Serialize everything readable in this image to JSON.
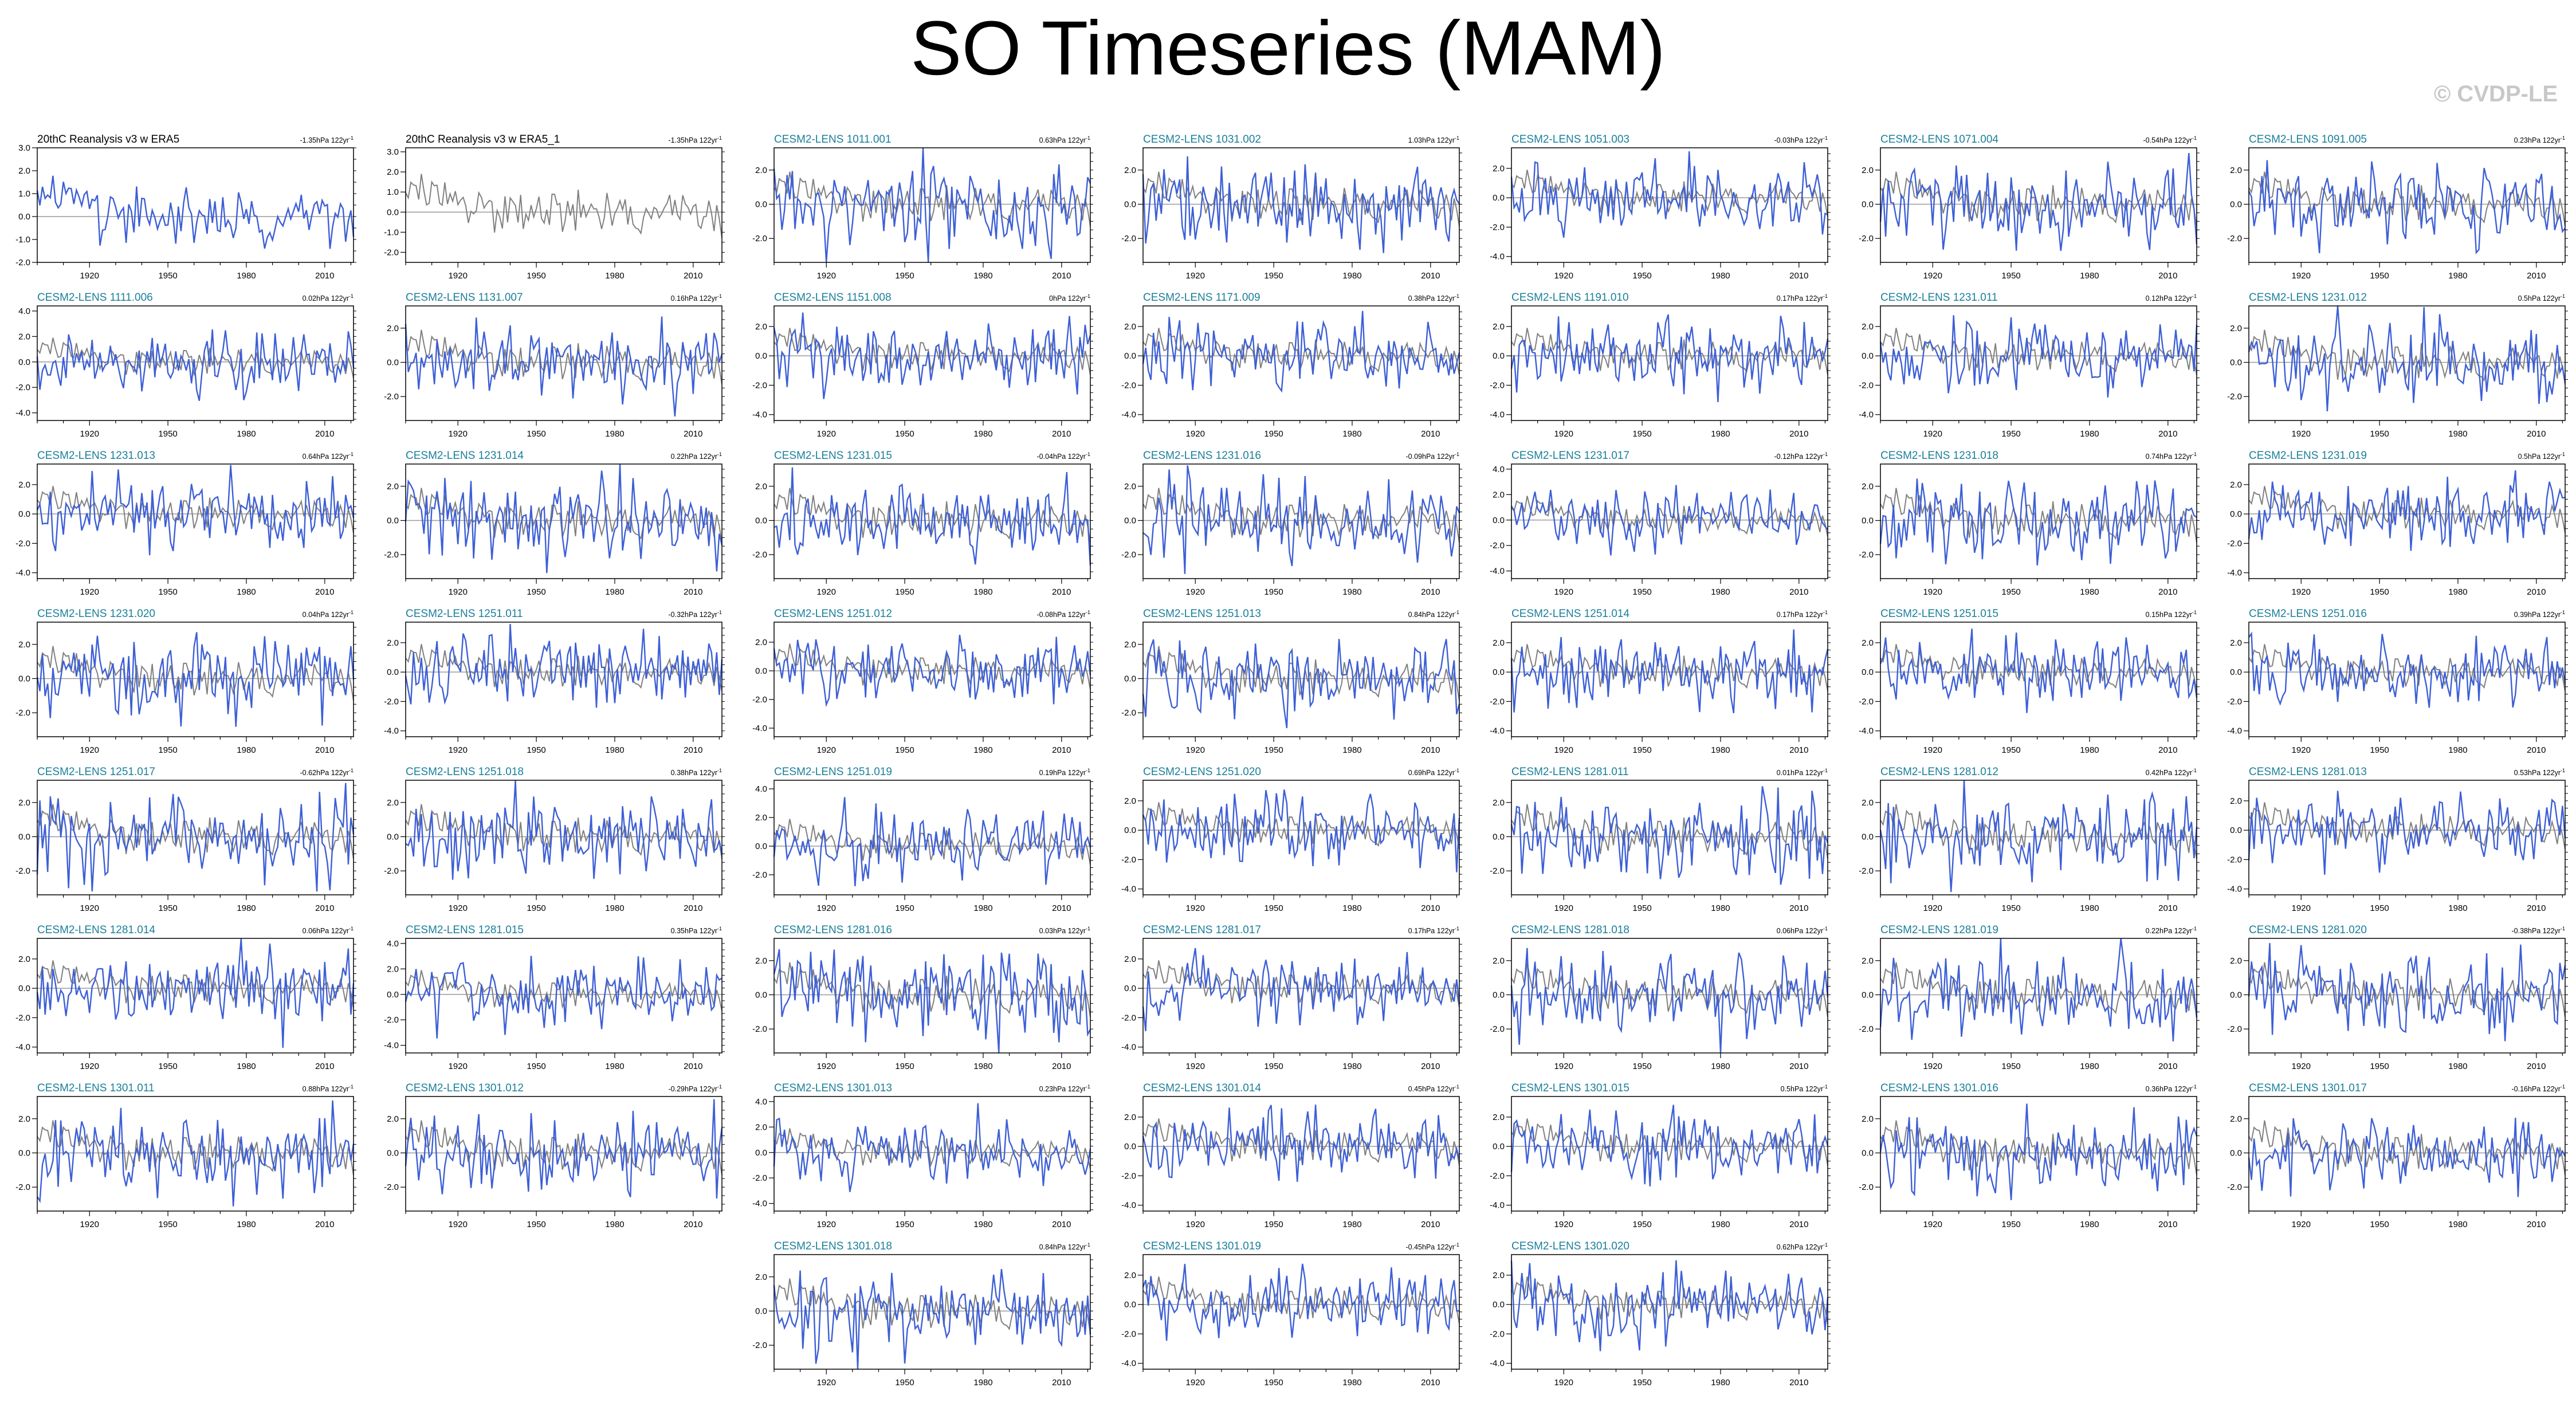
{
  "title": "SO Timeseries (MAM)",
  "copyright": "© CVDP-LE",
  "colors": {
    "model": "#3d5fd6",
    "obs": "#808080",
    "zero": "#9a9a9a",
    "model_title": "#1a7f9a",
    "obs_title": "#000000"
  },
  "chart_data": {
    "type": "line",
    "x_range": [
      1900,
      2021
    ],
    "x_ticks": [
      "1920",
      "1950",
      "1980",
      "2010"
    ],
    "trend_suffix": "hPa 122yr",
    "trend_exp": "-1",
    "panels": [
      {
        "title": "20thC Reanalysis v3 w ERA5",
        "trend": "-1.35hPa 122yr",
        "trend_exp": "-1",
        "kind": "obs1",
        "ylim": [
          -2.0,
          3.0
        ],
        "y_ticks": [
          "3.0",
          "2.0",
          "1.0",
          "0.0",
          "-1.0",
          "-2.0"
        ],
        "amp": 0.9
      },
      {
        "title": "20thC Reanalysis v3 w ERA5_1",
        "trend": "-1.35hPa 122yr",
        "trend_exp": "-1",
        "kind": "obs2",
        "ylim": [
          -2.5,
          3.2
        ],
        "y_ticks": [
          "3.0",
          "2.0",
          "1.0",
          "0.0",
          "-1.0",
          "-2.0"
        ],
        "amp": 0.9
      },
      {
        "title": "CESM2-LENS 1011.001",
        "trend": "0.63hPa 122yr",
        "ylim": [
          -3.4,
          3.3
        ],
        "y_ticks": [
          "2.0",
          "0.0",
          "-2.0"
        ]
      },
      {
        "title": "CESM2-LENS 1031.002",
        "trend": "1.03hPa 122yr",
        "ylim": [
          -3.4,
          3.3
        ],
        "y_ticks": [
          "2.0",
          "0.0",
          "-2.0"
        ]
      },
      {
        "title": "CESM2-LENS 1051.003",
        "trend": "-0.03hPa 122yr",
        "ylim": [
          -4.4,
          3.4
        ],
        "y_ticks": [
          "2.0",
          "0.0",
          "-2.0",
          "-4.0"
        ]
      },
      {
        "title": "CESM2-LENS 1071.004",
        "trend": "-0.54hPa 122yr",
        "ylim": [
          -3.4,
          3.3
        ],
        "y_ticks": [
          "2.0",
          "0.0",
          "-2.0"
        ]
      },
      {
        "title": "CESM2-LENS 1091.005",
        "trend": "0.23hPa 122yr",
        "ylim": [
          -3.4,
          3.3
        ],
        "y_ticks": [
          "2.0",
          "0.0",
          "-2.0"
        ]
      },
      {
        "title": "CESM2-LENS 1111.006",
        "trend": "0.02hPa 122yr",
        "ylim": [
          -4.6,
          4.4
        ],
        "y_ticks": [
          "4.0",
          "2.0",
          "0.0",
          "-2.0",
          "-4.0"
        ]
      },
      {
        "title": "CESM2-LENS 1131.007",
        "trend": "0.16hPa 122yr",
        "ylim": [
          -3.4,
          3.3
        ],
        "y_ticks": [
          "2.0",
          "0.0",
          "-2.0"
        ]
      },
      {
        "title": "CESM2-LENS 1151.008",
        "trend": "0hPa 122yr",
        "ylim": [
          -4.4,
          3.4
        ],
        "y_ticks": [
          "2.0",
          "0.0",
          "-2.0",
          "-4.0"
        ]
      },
      {
        "title": "CESM2-LENS 1171.009",
        "trend": "0.38hPa 122yr",
        "ylim": [
          -4.4,
          3.4
        ],
        "y_ticks": [
          "2.0",
          "0.0",
          "-2.0",
          "-4.0"
        ]
      },
      {
        "title": "CESM2-LENS 1191.010",
        "trend": "0.17hPa 122yr",
        "ylim": [
          -4.4,
          3.4
        ],
        "y_ticks": [
          "2.0",
          "0.0",
          "-2.0",
          "-4.0"
        ]
      },
      {
        "title": "CESM2-LENS 1231.011",
        "trend": "0.12hPa 122yr",
        "ylim": [
          -4.4,
          3.4
        ],
        "y_ticks": [
          "2.0",
          "0.0",
          "-2.0",
          "-4.0"
        ]
      },
      {
        "title": "CESM2-LENS 1231.012",
        "trend": "0.5hPa 122yr",
        "ylim": [
          -3.4,
          3.3
        ],
        "y_ticks": [
          "2.0",
          "0.0",
          "-2.0"
        ]
      },
      {
        "title": "CESM2-LENS 1231.013",
        "trend": "0.64hPa 122yr",
        "ylim": [
          -4.4,
          3.4
        ],
        "y_ticks": [
          "2.0",
          "0.0",
          "-2.0",
          "-4.0"
        ]
      },
      {
        "title": "CESM2-LENS 1231.014",
        "trend": "0.22hPa 122yr",
        "ylim": [
          -3.4,
          3.3
        ],
        "y_ticks": [
          "2.0",
          "0.0",
          "-2.0"
        ]
      },
      {
        "title": "CESM2-LENS 1231.015",
        "trend": "-0.04hPa 122yr",
        "ylim": [
          -3.4,
          3.3
        ],
        "y_ticks": [
          "2.0",
          "0.0",
          "-2.0"
        ]
      },
      {
        "title": "CESM2-LENS 1231.016",
        "trend": "-0.09hPa 122yr",
        "ylim": [
          -3.4,
          3.3
        ],
        "y_ticks": [
          "2.0",
          "0.0",
          "-2.0"
        ]
      },
      {
        "title": "CESM2-LENS 1231.017",
        "trend": "-0.12hPa 122yr",
        "ylim": [
          -4.6,
          4.4
        ],
        "y_ticks": [
          "4.0",
          "2.0",
          "0.0",
          "-2.0",
          "-4.0"
        ]
      },
      {
        "title": "CESM2-LENS 1231.018",
        "trend": "0.74hPa 122yr",
        "ylim": [
          -3.4,
          3.3
        ],
        "y_ticks": [
          "2.0",
          "0.0",
          "-2.0"
        ]
      },
      {
        "title": "CESM2-LENS 1231.019",
        "trend": "0.5hPa 122yr",
        "ylim": [
          -4.4,
          3.4
        ],
        "y_ticks": [
          "2.0",
          "0.0",
          "-2.0",
          "-4.0"
        ]
      },
      {
        "title": "CESM2-LENS 1231.020",
        "trend": "0.04hPa 122yr",
        "ylim": [
          -3.4,
          3.3
        ],
        "y_ticks": [
          "2.0",
          "0.0",
          "-2.0"
        ]
      },
      {
        "title": "CESM2-LENS 1251.011",
        "trend": "-0.32hPa 122yr",
        "ylim": [
          -4.4,
          3.4
        ],
        "y_ticks": [
          "2.0",
          "0.0",
          "-2.0",
          "-4.0"
        ]
      },
      {
        "title": "CESM2-LENS 1251.012",
        "trend": "-0.08hPa 122yr",
        "ylim": [
          -4.6,
          3.4
        ],
        "y_ticks": [
          "2.0",
          "0.0",
          "-2.0",
          "-4.0"
        ]
      },
      {
        "title": "CESM2-LENS 1251.013",
        "trend": "0.84hPa 122yr",
        "ylim": [
          -3.4,
          3.3
        ],
        "y_ticks": [
          "2.0",
          "0.0",
          "-2.0"
        ]
      },
      {
        "title": "CESM2-LENS 1251.014",
        "trend": "0.17hPa 122yr",
        "ylim": [
          -4.4,
          3.4
        ],
        "y_ticks": [
          "2.0",
          "0.0",
          "-2.0",
          "-4.0"
        ]
      },
      {
        "title": "CESM2-LENS 1251.015",
        "trend": "0.15hPa 122yr",
        "ylim": [
          -4.4,
          3.4
        ],
        "y_ticks": [
          "2.0",
          "0.0",
          "-2.0",
          "-4.0"
        ]
      },
      {
        "title": "CESM2-LENS 1251.016",
        "trend": "0.39hPa 122yr",
        "ylim": [
          -4.4,
          3.4
        ],
        "y_ticks": [
          "2.0",
          "0.0",
          "-2.0",
          "-4.0"
        ]
      },
      {
        "title": "CESM2-LENS 1251.017",
        "trend": "-0.62hPa 122yr",
        "ylim": [
          -3.4,
          3.3
        ],
        "y_ticks": [
          "2.0",
          "0.0",
          "-2.0"
        ]
      },
      {
        "title": "CESM2-LENS 1251.018",
        "trend": "0.38hPa 122yr",
        "ylim": [
          -3.4,
          3.3
        ],
        "y_ticks": [
          "2.0",
          "0.0",
          "-2.0"
        ]
      },
      {
        "title": "CESM2-LENS 1251.019",
        "trend": "0.19hPa 122yr",
        "ylim": [
          -3.4,
          4.6
        ],
        "y_ticks": [
          "4.0",
          "2.0",
          "0.0",
          "-2.0"
        ]
      },
      {
        "title": "CESM2-LENS 1251.020",
        "trend": "0.69hPa 122yr",
        "ylim": [
          -4.4,
          3.4
        ],
        "y_ticks": [
          "2.0",
          "0.0",
          "-2.0",
          "-4.0"
        ]
      },
      {
        "title": "CESM2-LENS 1281.011",
        "trend": "0.01hPa 122yr",
        "ylim": [
          -3.4,
          3.3
        ],
        "y_ticks": [
          "2.0",
          "0.0",
          "-2.0"
        ]
      },
      {
        "title": "CESM2-LENS 1281.012",
        "trend": "0.42hPa 122yr",
        "ylim": [
          -3.4,
          3.3
        ],
        "y_ticks": [
          "2.0",
          "0.0",
          "-2.0"
        ]
      },
      {
        "title": "CESM2-LENS 1281.013",
        "trend": "0.53hPa 122yr",
        "ylim": [
          -4.4,
          3.4
        ],
        "y_ticks": [
          "2.0",
          "0.0",
          "-2.0",
          "-4.0"
        ]
      },
      {
        "title": "CESM2-LENS 1281.014",
        "trend": "0.06hPa 122yr",
        "ylim": [
          -4.4,
          3.4
        ],
        "y_ticks": [
          "2.0",
          "0.0",
          "-2.0",
          "-4.0"
        ]
      },
      {
        "title": "CESM2-LENS 1281.015",
        "trend": "0.35hPa 122yr",
        "ylim": [
          -4.6,
          4.4
        ],
        "y_ticks": [
          "4.0",
          "2.0",
          "0.0",
          "-2.0",
          "-4.0"
        ]
      },
      {
        "title": "CESM2-LENS 1281.016",
        "trend": "0.03hPa 122yr",
        "ylim": [
          -3.4,
          3.3
        ],
        "y_ticks": [
          "2.0",
          "0.0",
          "-2.0"
        ]
      },
      {
        "title": "CESM2-LENS 1281.017",
        "trend": "0.17hPa 122yr",
        "ylim": [
          -4.4,
          3.4
        ],
        "y_ticks": [
          "2.0",
          "0.0",
          "-2.0",
          "-4.0"
        ]
      },
      {
        "title": "CESM2-LENS 1281.018",
        "trend": "0.06hPa 122yr",
        "ylim": [
          -3.4,
          3.3
        ],
        "y_ticks": [
          "2.0",
          "0.0",
          "-2.0"
        ]
      },
      {
        "title": "CESM2-LENS 1281.019",
        "trend": "0.22hPa 122yr",
        "ylim": [
          -3.4,
          3.3
        ],
        "y_ticks": [
          "2.0",
          "0.0",
          "-2.0"
        ]
      },
      {
        "title": "CESM2-LENS 1281.020",
        "trend": "-0.38hPa 122yr",
        "ylim": [
          -3.4,
          3.3
        ],
        "y_ticks": [
          "2.0",
          "0.0",
          "-2.0"
        ]
      },
      {
        "title": "CESM2-LENS 1301.011",
        "trend": "0.88hPa 122yr",
        "ylim": [
          -3.4,
          3.3
        ],
        "y_ticks": [
          "2.0",
          "0.0",
          "-2.0"
        ]
      },
      {
        "title": "CESM2-LENS 1301.012",
        "trend": "-0.29hPa 122yr",
        "ylim": [
          -3.4,
          3.3
        ],
        "y_ticks": [
          "2.0",
          "0.0",
          "-2.0"
        ]
      },
      {
        "title": "CESM2-LENS 1301.013",
        "trend": "0.23hPa 122yr",
        "ylim": [
          -4.6,
          4.4
        ],
        "y_ticks": [
          "4.0",
          "2.0",
          "0.0",
          "-2.0",
          "-4.0"
        ]
      },
      {
        "title": "CESM2-LENS 1301.014",
        "trend": "0.45hPa 122yr",
        "ylim": [
          -4.4,
          3.4
        ],
        "y_ticks": [
          "2.0",
          "0.0",
          "-2.0",
          "-4.0"
        ]
      },
      {
        "title": "CESM2-LENS 1301.015",
        "trend": "0.5hPa 122yr",
        "ylim": [
          -4.4,
          3.4
        ],
        "y_ticks": [
          "2.0",
          "0.0",
          "-2.0",
          "-4.0"
        ]
      },
      {
        "title": "CESM2-LENS 1301.016",
        "trend": "0.36hPa 122yr",
        "ylim": [
          -3.4,
          3.3
        ],
        "y_ticks": [
          "2.0",
          "0.0",
          "-2.0"
        ]
      },
      {
        "title": "CESM2-LENS 1301.017",
        "trend": "-0.16hPa 122yr",
        "ylim": [
          -3.4,
          3.3
        ],
        "y_ticks": [
          "2.0",
          "0.0",
          "-2.0"
        ]
      },
      {
        "title": "CESM2-LENS 1301.018",
        "trend": "0.84hPa 122yr",
        "ylim": [
          -3.4,
          3.3
        ],
        "y_ticks": [
          "2.0",
          "0.0",
          "-2.0"
        ]
      },
      {
        "title": "CESM2-LENS 1301.019",
        "trend": "-0.45hPa 122yr",
        "ylim": [
          -4.4,
          3.4
        ],
        "y_ticks": [
          "2.0",
          "0.0",
          "-2.0",
          "-4.0"
        ]
      },
      {
        "title": "CESM2-LENS 1301.020",
        "trend": "0.62hPa 122yr",
        "ylim": [
          -4.4,
          3.4
        ],
        "y_ticks": [
          "2.0",
          "0.0",
          "-2.0",
          "-4.0"
        ]
      }
    ]
  }
}
